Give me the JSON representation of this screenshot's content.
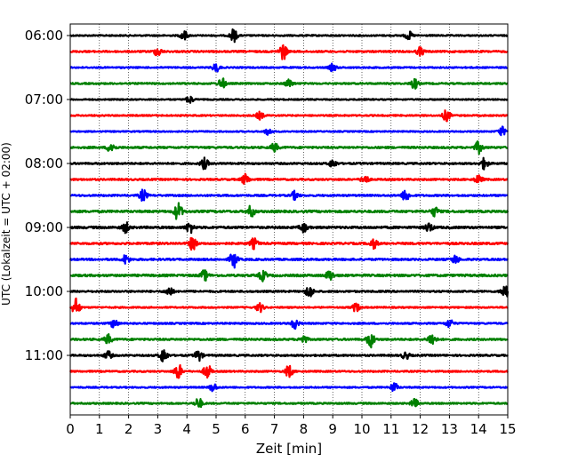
{
  "chart_data": {
    "type": "line",
    "title": "",
    "xlabel": "Zeit  [min]",
    "ylabel": "UTC (Lokalzeit = UTC + 02:00)",
    "xlim": [
      0,
      15
    ],
    "x_ticks": [
      0,
      1,
      2,
      3,
      4,
      5,
      6,
      7,
      8,
      9,
      10,
      11,
      12,
      13,
      14,
      15
    ],
    "x_tick_labels": [
      "0",
      "1",
      "2",
      "3",
      "4",
      "5",
      "6",
      "7",
      "8",
      "9",
      "10",
      "11",
      "12",
      "13",
      "14",
      "15"
    ],
    "y_tick_labels": [
      {
        "label": "06:00",
        "trace_index": 0
      },
      {
        "label": "07:00",
        "trace_index": 4
      },
      {
        "label": "08:00",
        "trace_index": 8
      },
      {
        "label": "09:00",
        "trace_index": 12
      },
      {
        "label": "10:00",
        "trace_index": 16
      },
      {
        "label": "11:00",
        "trace_index": 20
      }
    ],
    "grid": "vertical dotted at each minute",
    "trace_interval_minutes": 15,
    "trace_color_cycle": [
      "#000000",
      "#ff0000",
      "#0000ff",
      "#008000"
    ],
    "traces": [
      {
        "start": "06:00",
        "color": "#000000",
        "events": [
          [
            5.6,
            1.4
          ],
          [
            3.9,
            1.0
          ],
          [
            11.6,
            0.9
          ]
        ],
        "base": 0.45
      },
      {
        "start": "06:15",
        "color": "#ff0000",
        "events": [
          [
            7.3,
            1.8
          ],
          [
            3.0,
            1.0
          ],
          [
            12.0,
            0.9
          ]
        ],
        "base": 0.55
      },
      {
        "start": "06:30",
        "color": "#0000ff",
        "events": [
          [
            5.0,
            0.9
          ],
          [
            9.0,
            0.8
          ]
        ],
        "base": 0.45
      },
      {
        "start": "06:45",
        "color": "#008000",
        "events": [
          [
            5.2,
            1.2
          ],
          [
            11.8,
            1.1
          ],
          [
            7.5,
            0.9
          ]
        ],
        "base": 0.5
      },
      {
        "start": "07:00",
        "color": "#000000",
        "events": [
          [
            4.1,
            0.8
          ]
        ],
        "base": 0.4
      },
      {
        "start": "07:15",
        "color": "#ff0000",
        "events": [
          [
            12.9,
            1.3
          ],
          [
            6.5,
            0.8
          ]
        ],
        "base": 0.45
      },
      {
        "start": "07:30",
        "color": "#0000ff",
        "events": [
          [
            14.8,
            1.0
          ],
          [
            6.8,
            0.8
          ]
        ],
        "base": 0.4
      },
      {
        "start": "07:45",
        "color": "#008000",
        "events": [
          [
            1.4,
            1.2
          ],
          [
            14.0,
            1.3
          ],
          [
            7.0,
            0.9
          ]
        ],
        "base": 0.6
      },
      {
        "start": "08:00",
        "color": "#000000",
        "events": [
          [
            4.6,
            1.2
          ],
          [
            14.2,
            1.2
          ],
          [
            9.0,
            0.9
          ]
        ],
        "base": 0.55
      },
      {
        "start": "08:15",
        "color": "#ff0000",
        "events": [
          [
            6.0,
            1.2
          ],
          [
            10.1,
            1.0
          ],
          [
            14.0,
            0.9
          ]
        ],
        "base": 0.55
      },
      {
        "start": "08:30",
        "color": "#0000ff",
        "events": [
          [
            2.5,
            1.3
          ],
          [
            11.5,
            1.3
          ],
          [
            7.7,
            0.9
          ]
        ],
        "base": 0.55
      },
      {
        "start": "08:45",
        "color": "#008000",
        "events": [
          [
            3.7,
            2.0
          ],
          [
            6.2,
            1.2
          ],
          [
            12.5,
            1.0
          ]
        ],
        "base": 0.7
      },
      {
        "start": "09:00",
        "color": "#000000",
        "events": [
          [
            1.9,
            1.1
          ],
          [
            4.1,
            1.2
          ],
          [
            8.0,
            1.0
          ],
          [
            12.3,
            1.0
          ]
        ],
        "base": 0.7
      },
      {
        "start": "09:15",
        "color": "#ff0000",
        "events": [
          [
            4.2,
            1.4
          ],
          [
            6.3,
            1.1
          ],
          [
            10.4,
            1.0
          ]
        ],
        "base": 0.65
      },
      {
        "start": "09:30",
        "color": "#0000ff",
        "events": [
          [
            5.6,
            1.8
          ],
          [
            1.9,
            1.0
          ],
          [
            13.2,
            0.9
          ]
        ],
        "base": 0.6
      },
      {
        "start": "09:45",
        "color": "#008000",
        "events": [
          [
            4.6,
            1.1
          ],
          [
            6.6,
            1.1
          ],
          [
            8.9,
            1.1
          ]
        ],
        "base": 0.7
      },
      {
        "start": "10:00",
        "color": "#000000",
        "events": [
          [
            8.2,
            1.4
          ],
          [
            3.4,
            1.0
          ],
          [
            14.9,
            1.5
          ]
        ],
        "base": 0.55
      },
      {
        "start": "10:15",
        "color": "#ff0000",
        "events": [
          [
            0.2,
            2.0
          ],
          [
            6.5,
            1.0
          ],
          [
            9.8,
            1.0
          ]
        ],
        "base": 0.45
      },
      {
        "start": "10:30",
        "color": "#0000ff",
        "events": [
          [
            1.5,
            1.0
          ],
          [
            7.7,
            1.1
          ],
          [
            13.0,
            0.9
          ]
        ],
        "base": 0.5
      },
      {
        "start": "10:45",
        "color": "#008000",
        "events": [
          [
            10.3,
            1.7
          ],
          [
            12.4,
            1.5
          ],
          [
            1.3,
            1.0
          ],
          [
            8.0,
            0.9
          ]
        ],
        "base": 0.6
      },
      {
        "start": "11:00",
        "color": "#000000",
        "events": [
          [
            3.2,
            1.6
          ],
          [
            4.4,
            1.2
          ],
          [
            1.3,
            0.9
          ],
          [
            11.5,
            0.8
          ]
        ],
        "base": 0.55
      },
      {
        "start": "11:15",
        "color": "#ff0000",
        "events": [
          [
            3.7,
            1.7
          ],
          [
            4.7,
            1.6
          ],
          [
            7.5,
            1.3
          ]
        ],
        "base": 0.5
      },
      {
        "start": "11:30",
        "color": "#0000ff",
        "events": [
          [
            11.1,
            1.0
          ],
          [
            4.9,
            0.9
          ]
        ],
        "base": 0.45
      },
      {
        "start": "11:45",
        "color": "#008000",
        "events": [
          [
            4.4,
            1.2
          ],
          [
            11.8,
            0.9
          ]
        ],
        "base": 0.5
      }
    ]
  }
}
